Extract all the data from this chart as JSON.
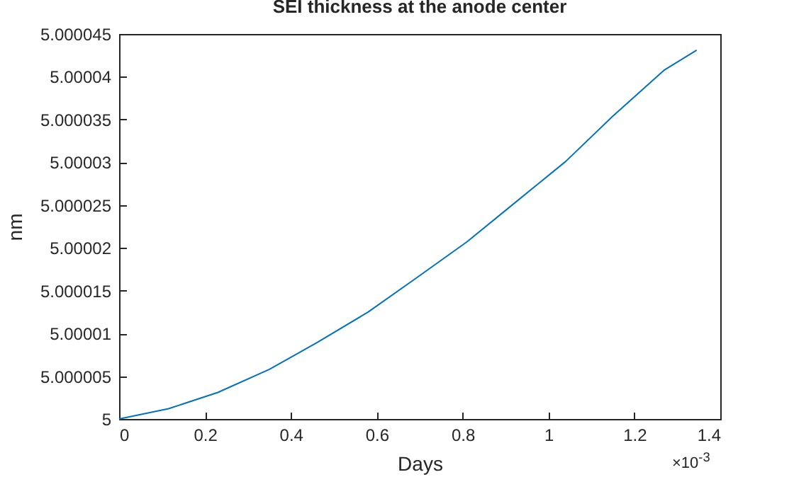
{
  "chart_data": {
    "type": "line",
    "title": "SEI thickness at the anode center",
    "xlabel": "Days",
    "ylabel": "nm",
    "x": [
      0,
      0.115,
      0.23,
      0.35,
      0.46,
      0.58,
      0.69,
      0.81,
      0.92,
      1.04,
      1.15,
      1.27,
      1.345
    ],
    "series": [
      {
        "color": "#0072bd",
        "values": [
          5,
          5.0000012,
          5.0000031,
          5.0000058,
          5.0000089,
          5.0000125,
          5.0000164,
          5.0000207,
          5.0000252,
          5.0000301,
          5.0000354,
          5.0000408,
          5.0000431
        ]
      }
    ],
    "xlim": [
      0,
      1.4
    ],
    "xticks": [
      0,
      0.2,
      0.4,
      0.6,
      0.8,
      1,
      1.2,
      1.4
    ],
    "ylim": [
      5,
      5.000045
    ],
    "yticks": [
      5,
      5.000005,
      5.00001,
      5.000015,
      5.00002,
      5.000025,
      5.00003,
      5.000035,
      5.00004,
      5.000045
    ],
    "grid": false,
    "marker": "none",
    "line_style": "solid",
    "annotations": [
      "×10$^{-3}$"
    ]
  }
}
